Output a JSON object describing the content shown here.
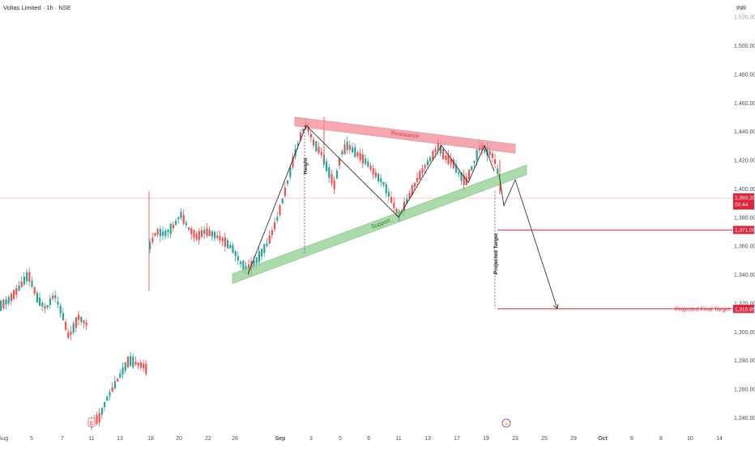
{
  "header": {
    "title": "Voltas Limited · 1h · NSE",
    "currency": "INR"
  },
  "colors": {
    "up": "#26a69a",
    "down": "#ef5350",
    "resistance_fill": "#f28b95",
    "support_fill": "#8fce8f",
    "target_line": "#e5243b",
    "text": "#2a2e39",
    "axis_text": "#4a4f5c",
    "price_tag": "#e5243b"
  },
  "chart_data": {
    "type": "candlestick",
    "title": "Voltas Limited · 1h · NSE",
    "y_axis": {
      "unit": "INR",
      "ylim": [
        1230,
        1520
      ],
      "ticks": [
        "1,240.00",
        "1,260.00",
        "1,280.00",
        "1,300.00",
        "1,320.00",
        "1,340.00",
        "1,360.00",
        "1,380.00",
        "1,400.00",
        "1,420.00",
        "1,440.00",
        "1,460.00",
        "1,480.00",
        "1,500.00"
      ]
    },
    "x_axis": {
      "ticks": [
        "Aug",
        "5",
        "7",
        "11",
        "13",
        "18",
        "20",
        "22",
        "26",
        "Sep",
        "3",
        "5",
        "9",
        "11",
        "13",
        "17",
        "19",
        "23",
        "25",
        "29",
        "Oct",
        "6",
        "8",
        "10",
        "14"
      ]
    },
    "series": [
      {
        "segment": "early-aug",
        "start": "Aug",
        "end": "7",
        "open_close_range": [
          1290,
          1342
        ]
      },
      {
        "segment": "mid-aug",
        "start": "11",
        "end": "13",
        "open_close_range": [
          1235,
          1283
        ]
      },
      {
        "segment": "late-aug",
        "start": "18",
        "end": "26",
        "open_close_range": [
          1345,
          1398
        ]
      },
      {
        "segment": "sep",
        "start": "Sep",
        "end": "19",
        "open_close_range": [
          1340,
          1445
        ]
      }
    ],
    "annotations": {
      "resistance": {
        "label": "Resistance",
        "from": {
          "x": "Sep-1",
          "y": 1447
        },
        "to": {
          "x": "22",
          "y": 1428
        }
      },
      "support": {
        "label": "Support",
        "from": {
          "x": "26",
          "y": 1337
        },
        "to": {
          "x": "22",
          "y": 1413
        }
      },
      "height_label": "Height",
      "projected_target_label": "Projected Target",
      "target_level": 1371.0,
      "final_target_level": 1315.85,
      "final_target_label": "Projected Final Target"
    },
    "price_tags": [
      {
        "value": "1,393.20",
        "sub": "00:44"
      },
      {
        "value": "1,371.00"
      },
      {
        "value": "1,315.85"
      }
    ]
  }
}
